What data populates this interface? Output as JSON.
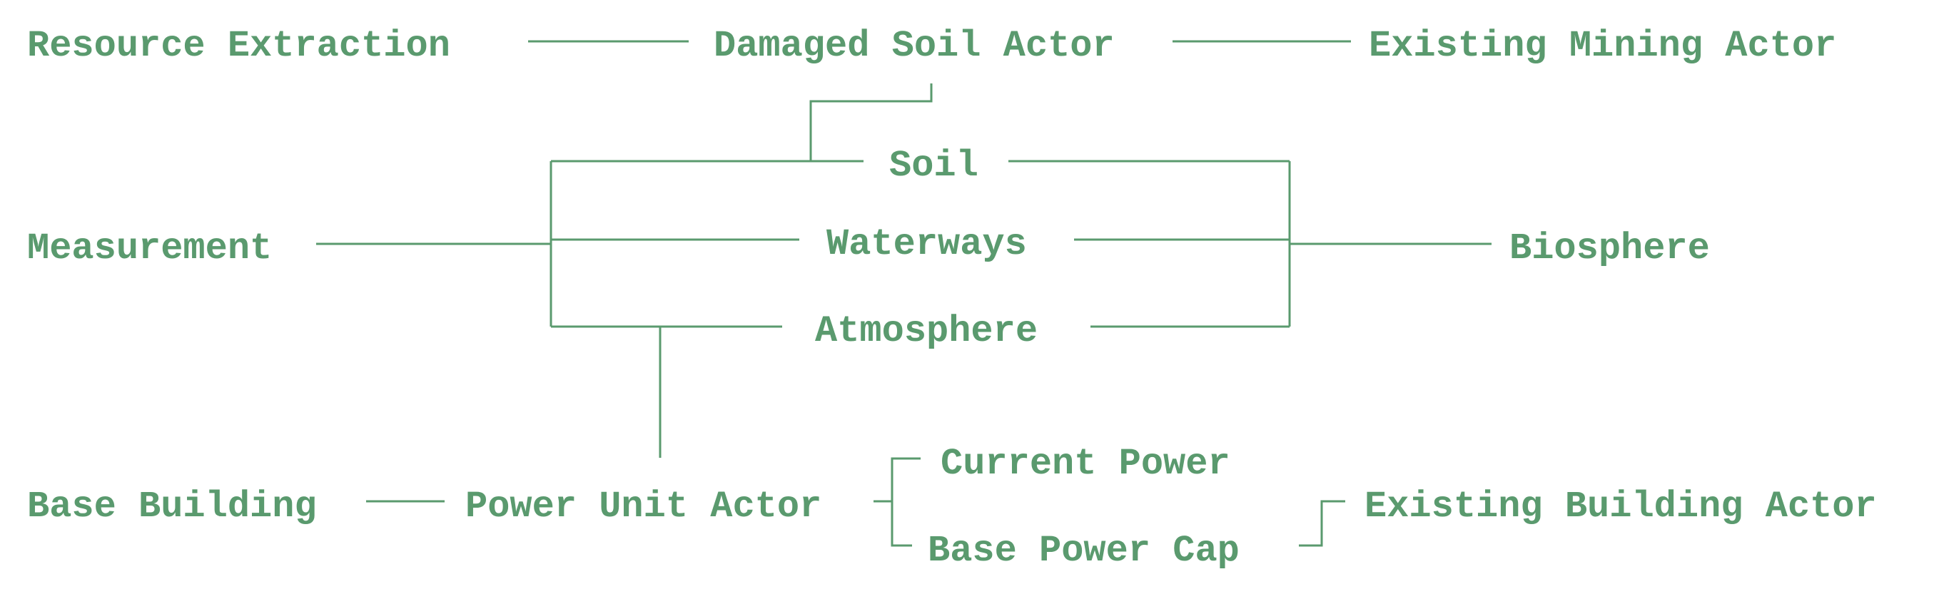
{
  "colors": {
    "ink": "#5a9a6e",
    "background": "#ffffff"
  },
  "nodes": {
    "resource_extraction": "Resource Extraction",
    "damaged_soil_actor": "Damaged Soil Actor",
    "existing_mining_actor": "Existing Mining Actor",
    "soil": "Soil",
    "measurement": "Measurement",
    "waterways": "Waterways",
    "biosphere": "Biosphere",
    "atmosphere": "Atmosphere",
    "current_power": "Current Power",
    "base_building": "Base Building",
    "power_unit_actor": "Power Unit Actor",
    "existing_building_actor": "Existing Building Actor",
    "base_power_cap": "Base Power Cap"
  }
}
